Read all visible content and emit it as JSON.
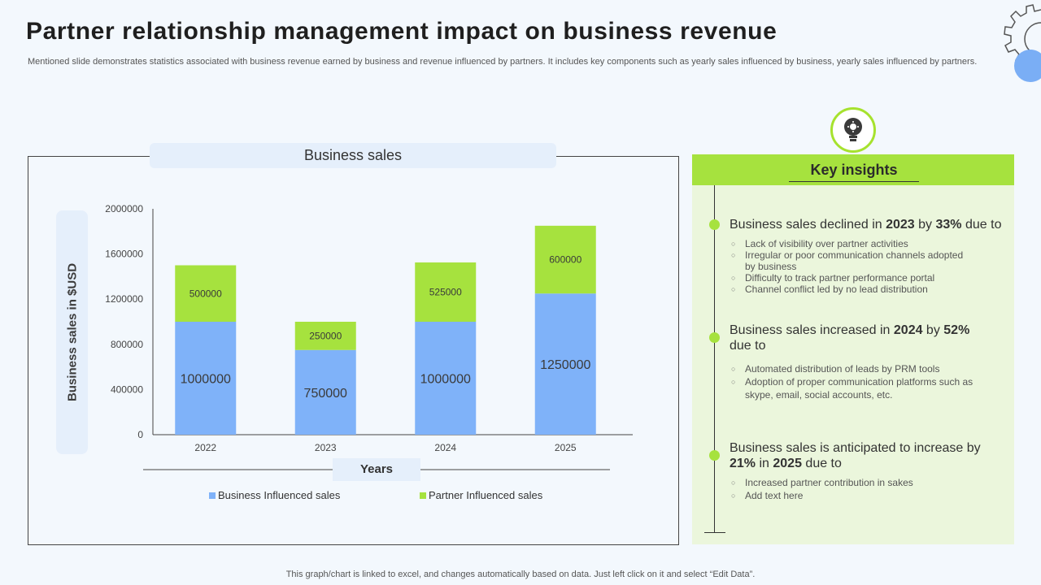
{
  "slide": {
    "title": "Partner relationship management impact on business revenue",
    "subtitle": "Mentioned slide demonstrates statistics associated with business revenue earned by business and revenue influenced by partners. It includes key components such as yearly sales influenced by business, yearly sales influenced by partners.",
    "footer": "This graph/chart is linked to excel,  and changes automatically based on data. Just left click on it and select “Edit Data”."
  },
  "icons": {
    "corner": "gear-icon",
    "insights": "lightbulb-gear-icon"
  },
  "colors": {
    "business": "#7fb2f9",
    "partner": "#a6e23e",
    "insights_bg": "#ebf6dc"
  },
  "chart_data": {
    "type": "bar",
    "stacked": true,
    "title": "Business sales",
    "xlabel": "Years",
    "ylabel": "Business sales in $USD",
    "categories": [
      "2022",
      "2023",
      "2024",
      "2025"
    ],
    "ylim": [
      0,
      2000000
    ],
    "yticks": [
      0,
      400000,
      800000,
      1200000,
      1600000,
      2000000
    ],
    "grid": false,
    "legend": "bottom",
    "series": [
      {
        "name": "Business Influenced sales",
        "values": [
          1000000,
          750000,
          1000000,
          1250000
        ],
        "color": "#7fb2f9"
      },
      {
        "name": "Partner Influenced sales",
        "values": [
          500000,
          250000,
          525000,
          600000
        ],
        "color": "#a6e23e"
      }
    ]
  },
  "insights": {
    "header": "Key insights",
    "items": [
      {
        "pre": "Business sales declined in ",
        "b1": "2023",
        "mid": " by ",
        "b2": "33%",
        "post": " due to",
        "bullets": [
          "Lack of visibility over partner activities",
          "Irregular or poor communication channels adopted by business",
          "Difficulty to track partner performance portal",
          "Channel conflict led by no lead distribution"
        ]
      },
      {
        "pre": "Business sales increased in ",
        "b1": "2024",
        "mid": " by ",
        "b2": "52%",
        "post": " due to",
        "bullets": [
          "Automated distribution of leads by PRM tools",
          "Adoption of proper communication platforms such as skype, email, social accounts, etc."
        ]
      },
      {
        "pre": "Business sales is anticipated to increase by ",
        "b1": "21%",
        "mid": " in ",
        "b2": "2025",
        "post": " due to",
        "bullets": [
          "Increased partner contribution in sakes",
          "Add text here"
        ]
      }
    ]
  }
}
